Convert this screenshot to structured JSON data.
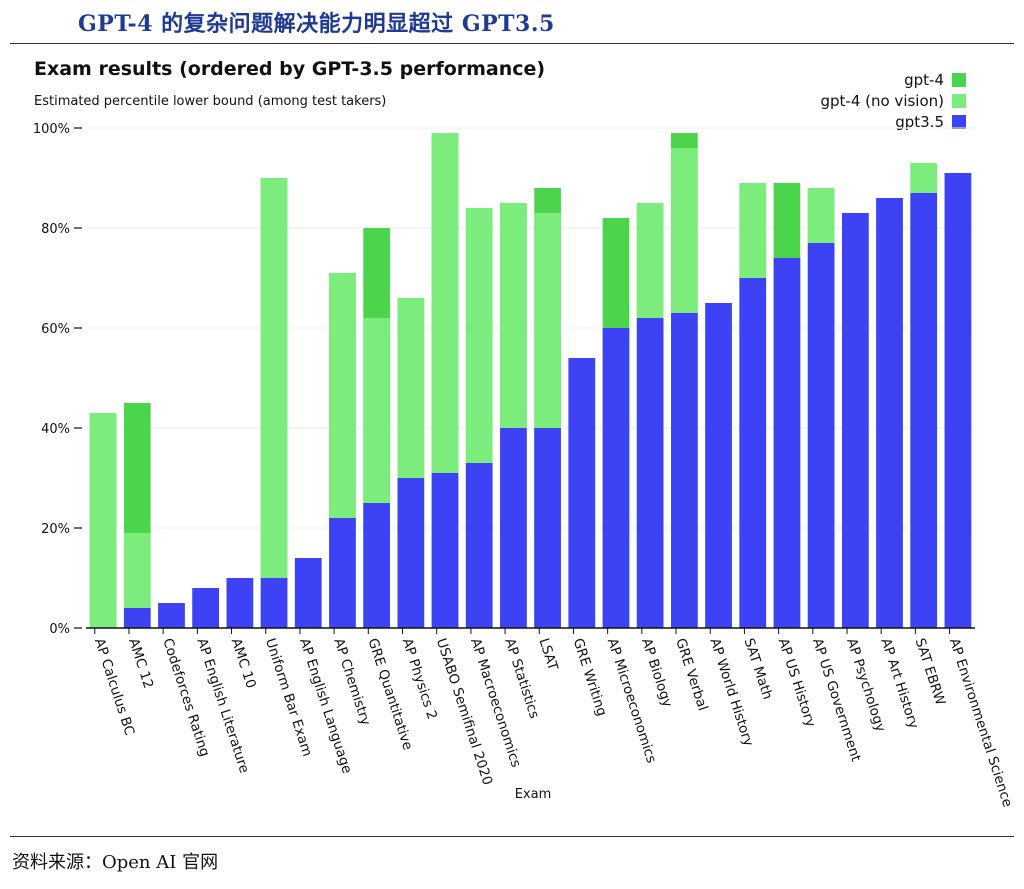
{
  "page": {
    "headline": "GPT-4 的复杂问题解决能力明显超过 GPT3.5",
    "source": "资料来源：Open AI 官网"
  },
  "colors": {
    "gpt4": "#4cd54c",
    "gpt4_no_vision": "#7ced7c",
    "gpt35": "#3d42f5",
    "headline": "#1f3a93"
  },
  "chart_data": {
    "type": "bar",
    "title": "Exam results (ordered by GPT-3.5 performance)",
    "subtitle": "Estimated percentile lower bound (among test takers)",
    "xlabel": "Exam",
    "ylabel": "",
    "ylim": [
      0,
      100
    ],
    "yticks": [
      "0%",
      "20%",
      "40%",
      "60%",
      "80%",
      "100%"
    ],
    "grid": true,
    "legend_placement": "top-right",
    "categories": [
      "AP Calculus BC",
      "AMC 12",
      "Codeforces Rating",
      "AP English Literature",
      "AMC 10",
      "Uniform Bar Exam",
      "AP English Language",
      "AP Chemistry",
      "GRE Quantitative",
      "AP Physics 2",
      "USABO Semifinal 2020",
      "AP Macroeconomics",
      "AP Statistics",
      "LSAT",
      "GRE Writing",
      "AP Microeconomics",
      "AP Biology",
      "GRE Verbal",
      "AP World History",
      "SAT Math",
      "AP US History",
      "AP US Government",
      "AP Psychology",
      "AP Art History",
      "SAT EBRW",
      "AP Environmental Science"
    ],
    "series": [
      {
        "name": "gpt-4",
        "values": [
          43,
          45,
          5,
          8,
          10,
          90,
          14,
          71,
          80,
          66,
          99,
          84,
          85,
          88,
          54,
          82,
          85,
          99,
          65,
          89,
          89,
          88,
          83,
          86,
          93,
          91
        ]
      },
      {
        "name": "gpt-4 (no vision)",
        "values": [
          43,
          19,
          5,
          8,
          10,
          90,
          14,
          71,
          62,
          66,
          99,
          84,
          85,
          83,
          54,
          60,
          85,
          96,
          65,
          89,
          74,
          88,
          83,
          86,
          93,
          91
        ]
      },
      {
        "name": "gpt3.5",
        "values": [
          0,
          4,
          5,
          8,
          10,
          10,
          14,
          22,
          25,
          30,
          31,
          33,
          40,
          40,
          54,
          60,
          62,
          63,
          65,
          70,
          74,
          77,
          83,
          86,
          87,
          91
        ]
      }
    ]
  }
}
